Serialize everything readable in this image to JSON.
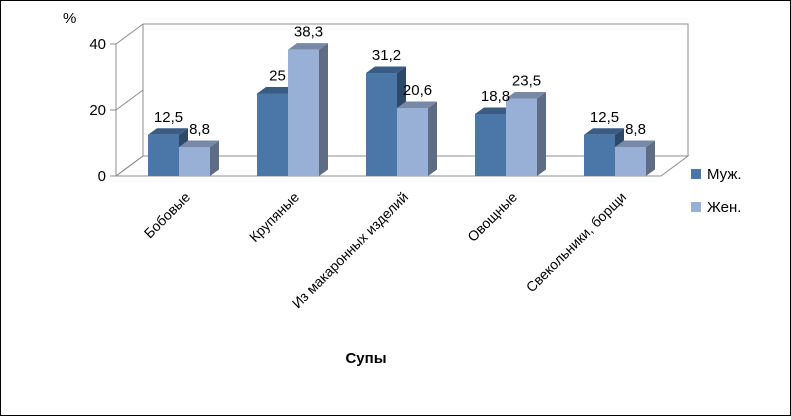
{
  "chart_data": {
    "type": "bar",
    "title": "",
    "ylabel": "%",
    "xlabel": "Супы",
    "ylim": [
      0,
      40
    ],
    "yticks": [
      0,
      20,
      40
    ],
    "categories": [
      "Бобовые",
      "Крупяные",
      "Из макаронных изделий",
      "Овощные",
      "Свекольники, борщи"
    ],
    "series": [
      {
        "name": "Муж.",
        "values": [
          12.5,
          25,
          31.2,
          18.8,
          12.5
        ],
        "labels": [
          "12,5",
          "25",
          "31,2",
          "18,8",
          "12,5"
        ],
        "color": "#4a76a8"
      },
      {
        "name": "Жен.",
        "values": [
          8.8,
          38.3,
          20.6,
          23.5,
          8.8
        ],
        "labels": [
          "8,8",
          "38,3",
          "20,6",
          "23,5",
          "8,8"
        ],
        "color": "#98b0d6"
      }
    ],
    "legend": "right",
    "grid": false,
    "style": "3d-clustered"
  }
}
